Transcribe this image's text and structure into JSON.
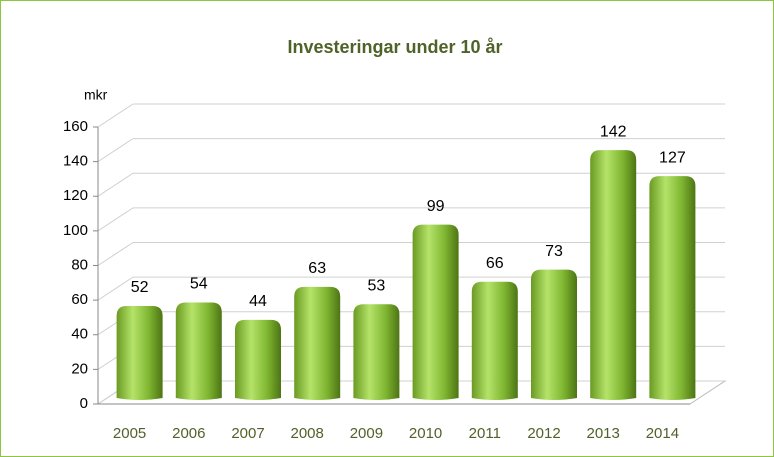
{
  "chart_data": {
    "type": "bar",
    "title": "Investeringar under 10 år",
    "y_axis_label": "mkr",
    "categories": [
      "2005",
      "2006",
      "2007",
      "2008",
      "2009",
      "2010",
      "2011",
      "2012",
      "2013",
      "2014"
    ],
    "values": [
      52,
      54,
      44,
      63,
      53,
      99,
      66,
      73,
      142,
      127
    ],
    "color": "#8cc63f",
    "ylim": [
      0,
      160
    ],
    "yticks": [
      0,
      20,
      40,
      60,
      80,
      100,
      120,
      140,
      160
    ],
    "grid": true
  }
}
